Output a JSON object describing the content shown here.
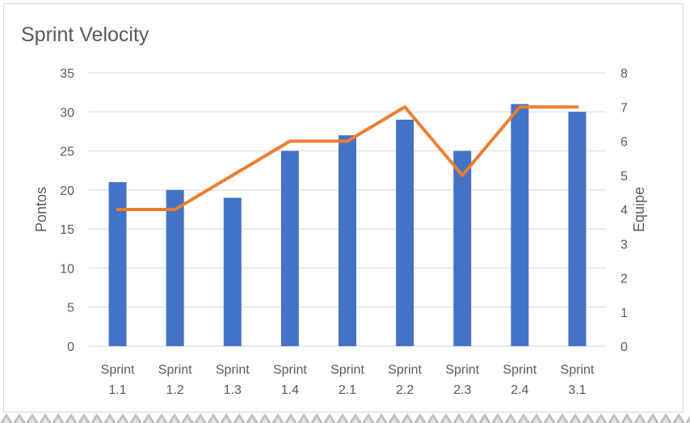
{
  "chart_data": {
    "type": "bar+line",
    "title": "Sprint Velocity",
    "categories": [
      [
        "Sprint",
        "1.1"
      ],
      [
        "Sprint",
        "1.2"
      ],
      [
        "Sprint",
        "1.3"
      ],
      [
        "Sprint",
        "1.4"
      ],
      [
        "Sprint",
        "2.1"
      ],
      [
        "Sprint",
        "2.2"
      ],
      [
        "Sprint",
        "2.3"
      ],
      [
        "Sprint",
        "2.4"
      ],
      [
        "Sprint",
        "3.1"
      ]
    ],
    "series": [
      {
        "type": "bar",
        "axis": "left",
        "color": "#4472C4",
        "values": [
          21,
          20,
          19,
          25,
          27,
          29,
          25,
          31,
          30
        ]
      },
      {
        "type": "line",
        "axis": "right",
        "color": "#ED7D31",
        "values": [
          4,
          4,
          5,
          6,
          6,
          7,
          5,
          7,
          7
        ]
      }
    ],
    "y_left": {
      "label": "Pontos",
      "min": 0,
      "max": 35,
      "ticks": [
        0,
        5,
        10,
        15,
        20,
        25,
        30,
        35
      ]
    },
    "y_right": {
      "label": "Equipe",
      "min": 0,
      "max": 8,
      "ticks": [
        0,
        1,
        2,
        3,
        4,
        5,
        6,
        7,
        8
      ]
    },
    "grid": true,
    "legend": "none"
  }
}
